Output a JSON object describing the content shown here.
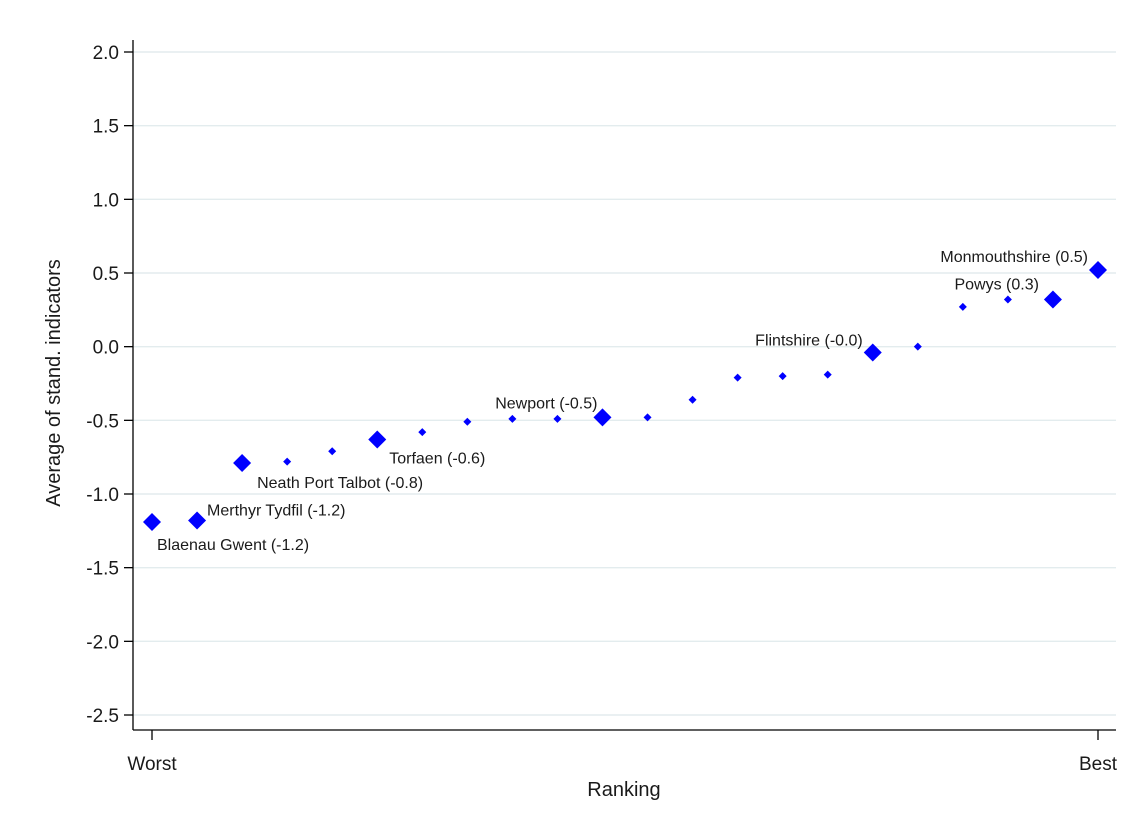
{
  "chart_data": {
    "type": "scatter",
    "xlabel": "Ranking",
    "ylabel": "Average of stand. indicators",
    "ylim": [
      -2.5,
      2.0
    ],
    "yticks": [
      2.0,
      1.5,
      1.0,
      0.5,
      0.0,
      -0.5,
      -1.0,
      -1.5,
      -2.0,
      -2.5
    ],
    "ytick_labels": [
      "2.0",
      "1.5",
      "1.0",
      "0.5",
      "0.0",
      "-0.5",
      "-1.0",
      "-1.5",
      "-2.0",
      "-2.5"
    ],
    "xlim": [
      1,
      22
    ],
    "xticks": [
      {
        "label": "Worst",
        "x": 1
      },
      {
        "label": "Best",
        "x": 22
      }
    ],
    "grid": true,
    "marker_color": "#0000ff",
    "points": [
      {
        "x": 1,
        "y": -1.19,
        "highlight": true,
        "label": "Blaenau Gwent (-1.2)"
      },
      {
        "x": 2,
        "y": -1.18,
        "highlight": true,
        "label": "Merthyr Tydfil (-1.2)"
      },
      {
        "x": 3,
        "y": -0.79,
        "highlight": true,
        "label": "Neath Port Talbot (-0.8)"
      },
      {
        "x": 4,
        "y": -0.78,
        "highlight": false
      },
      {
        "x": 5,
        "y": -0.71,
        "highlight": false
      },
      {
        "x": 6,
        "y": -0.63,
        "highlight": true,
        "label": "Torfaen (-0.6)"
      },
      {
        "x": 7,
        "y": -0.58,
        "highlight": false
      },
      {
        "x": 8,
        "y": -0.51,
        "highlight": false
      },
      {
        "x": 9,
        "y": -0.49,
        "highlight": false
      },
      {
        "x": 10,
        "y": -0.49,
        "highlight": false
      },
      {
        "x": 11,
        "y": -0.48,
        "highlight": true,
        "label": "Newport (-0.5)"
      },
      {
        "x": 12,
        "y": -0.48,
        "highlight": false
      },
      {
        "x": 13,
        "y": -0.36,
        "highlight": false
      },
      {
        "x": 14,
        "y": -0.21,
        "highlight": false
      },
      {
        "x": 15,
        "y": -0.2,
        "highlight": false
      },
      {
        "x": 16,
        "y": -0.19,
        "highlight": false
      },
      {
        "x": 17,
        "y": -0.04,
        "highlight": true,
        "label": "Flintshire (-0.0)"
      },
      {
        "x": 18,
        "y": 0.0,
        "highlight": false
      },
      {
        "x": 19,
        "y": 0.27,
        "highlight": false
      },
      {
        "x": 20,
        "y": 0.32,
        "highlight": false
      },
      {
        "x": 21,
        "y": 0.32,
        "highlight": true,
        "label": "Powys (0.3)"
      },
      {
        "x": 22,
        "y": 0.52,
        "highlight": true,
        "label": "Monmouthshire (0.5)"
      }
    ]
  }
}
